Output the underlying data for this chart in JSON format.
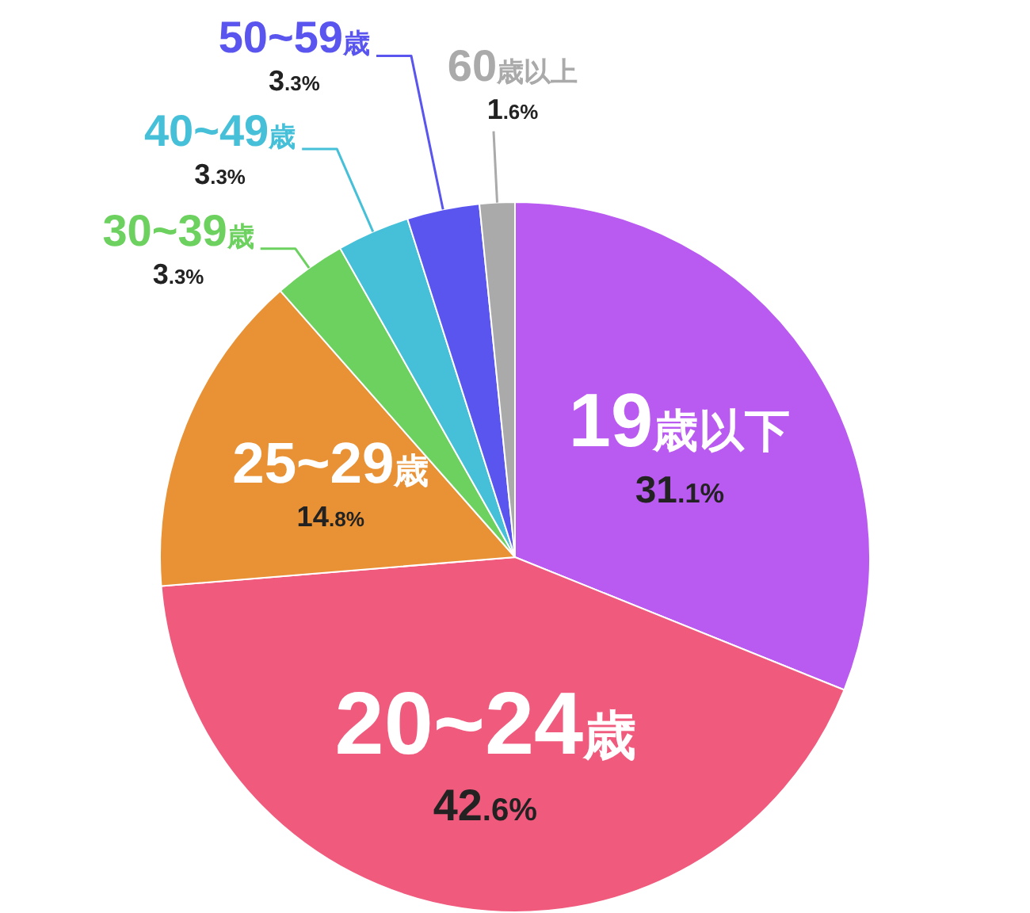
{
  "chart_data": {
    "type": "pie",
    "categories": [
      "19歳以下",
      "20~24歳",
      "25~29歳",
      "30~39歳",
      "40~49歳",
      "50~59歳",
      "60歳以上"
    ],
    "values": [
      31.1,
      42.6,
      14.8,
      3.3,
      3.3,
      3.3,
      1.6
    ],
    "colors": [
      "#b95af0",
      "#f05a7d",
      "#e89235",
      "#6dd160",
      "#45c0d8",
      "#5a55ee",
      "#aaaaaa"
    ],
    "value_labels": [
      "31.1%",
      "42.6%",
      "14.8%",
      "3.3%",
      "3.3%",
      "3.3%",
      "1.6%"
    ]
  }
}
